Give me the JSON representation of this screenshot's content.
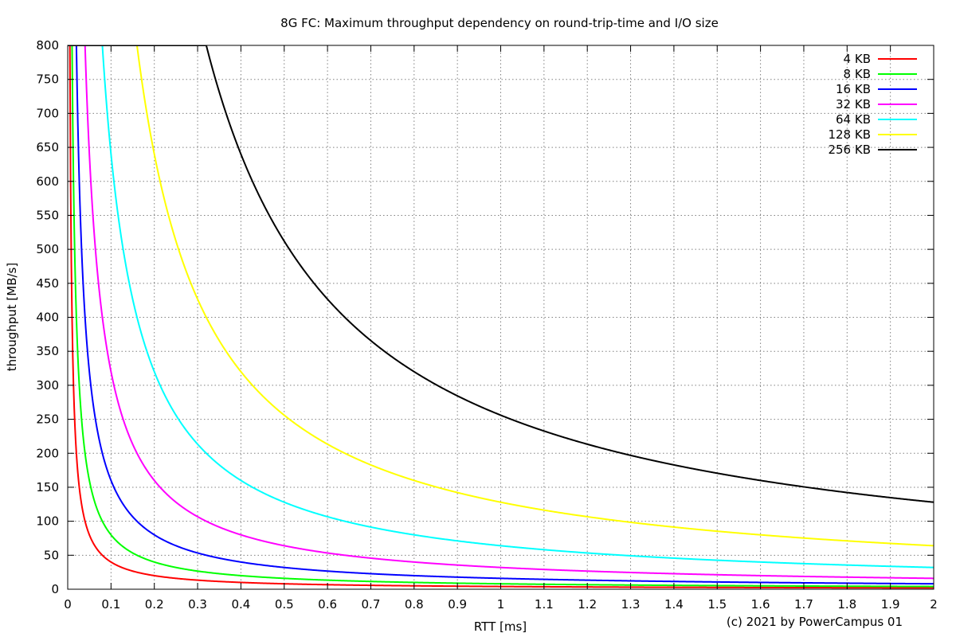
{
  "chart_data": {
    "type": "line",
    "title": "8G FC: Maximum throughput dependency on round-trip-time and I/O size",
    "xlabel": "RTT [ms]",
    "ylabel": "throughput [MB/s]",
    "xlim": [
      0,
      2
    ],
    "ylim": [
      0,
      800
    ],
    "x_ticks": [
      "0",
      "0.1",
      "0.2",
      "0.3",
      "0.4",
      "0.5",
      "0.6",
      "0.7",
      "0.8",
      "0.9",
      "1",
      "1.1",
      "1.2",
      "1.3",
      "1.4",
      "1.5",
      "1.6",
      "1.7",
      "1.8",
      "1.9",
      "2"
    ],
    "y_ticks": [
      "0",
      "50",
      "100",
      "150",
      "200",
      "250",
      "300",
      "350",
      "400",
      "450",
      "500",
      "550",
      "600",
      "650",
      "700",
      "750",
      "800"
    ],
    "grid": true,
    "legend_position": "top-right",
    "max_throughput": 800,
    "series": [
      {
        "name": "4 KB",
        "color": "#ff0000",
        "io_kb": 4
      },
      {
        "name": "8 KB",
        "color": "#00ff00",
        "io_kb": 8
      },
      {
        "name": "16 KB",
        "color": "#0000ff",
        "io_kb": 16
      },
      {
        "name": "32 KB",
        "color": "#ff00ff",
        "io_kb": 32
      },
      {
        "name": "64 KB",
        "color": "#00ffff",
        "io_kb": 64
      },
      {
        "name": "128 KB",
        "color": "#ffff00",
        "io_kb": 128
      },
      {
        "name": "256 KB",
        "color": "#000000",
        "io_kb": 256
      }
    ],
    "annotation": "(c) 2021 by PowerCampus 01"
  }
}
